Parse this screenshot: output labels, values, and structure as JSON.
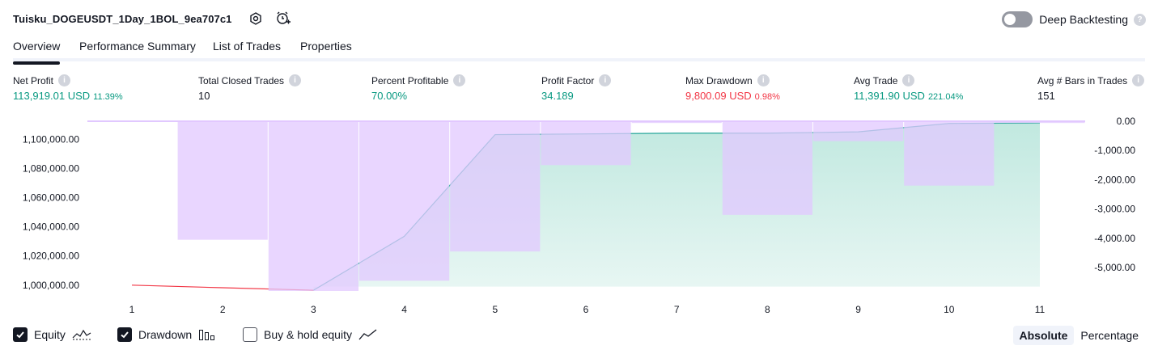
{
  "header": {
    "title": "Tuisku_DOGEUSDT_1Day_1BOL_9ea707c1",
    "deep_backtesting_label": "Deep Backtesting",
    "deep_backtesting_on": false
  },
  "tabs": [
    {
      "label": "Overview",
      "active": true
    },
    {
      "label": "Performance Summary",
      "active": false
    },
    {
      "label": "List of Trades",
      "active": false
    },
    {
      "label": "Properties",
      "active": false
    }
  ],
  "metrics": [
    {
      "label": "Net Profit",
      "value": "113,919.01 USD",
      "pct": "11.39%",
      "color": "green"
    },
    {
      "label": "Total Closed Trades",
      "value": "10",
      "pct": "",
      "color": "dark"
    },
    {
      "label": "Percent Profitable",
      "value": "70.00%",
      "pct": "",
      "color": "green"
    },
    {
      "label": "Profit Factor",
      "value": "34.189",
      "pct": "",
      "color": "green"
    },
    {
      "label": "Max Drawdown",
      "value": "9,800.09 USD",
      "pct": "0.98%",
      "color": "red"
    },
    {
      "label": "Avg Trade",
      "value": "11,391.90 USD",
      "pct": "221.04%",
      "color": "green"
    },
    {
      "label": "Avg # Bars in Trades",
      "value": "151",
      "pct": "",
      "color": "dark"
    }
  ],
  "chart_data": {
    "type": "area",
    "x": [
      1,
      2,
      3,
      4,
      5,
      6,
      7,
      8,
      9,
      10,
      11
    ],
    "left_axis": {
      "ticks": [
        "1,100,000.00",
        "1,080,000.00",
        "1,060,000.00",
        "1,040,000.00",
        "1,020,000.00",
        "1,000,000.00"
      ],
      "tick_values": [
        1100000,
        1080000,
        1060000,
        1040000,
        1020000,
        1000000
      ],
      "range": [
        996000,
        1112500
      ]
    },
    "right_axis": {
      "ticks": [
        "0.00",
        "-1,000.00",
        "-2,000.00",
        "-3,000.00",
        "-4,000.00",
        "-5,000.00"
      ],
      "tick_values": [
        0,
        -1000,
        -2000,
        -3000,
        -4000,
        -5000
      ],
      "range": [
        -5800,
        0
      ]
    },
    "series": [
      {
        "name": "Equity",
        "values": [
          1000000,
          998200,
          996500,
          1033500,
          1103300,
          1103800,
          1104300,
          1104300,
          1105200,
          1111000,
          1111300
        ]
      },
      {
        "name": "Drawdown",
        "values": [
          0,
          -4050,
          -5800,
          -5450,
          -4450,
          -1500,
          -60,
          -3200,
          -680,
          -2200,
          -60
        ]
      }
    ],
    "colors": {
      "equity_line": "#26a69a",
      "equity_loss_line": "#f23645",
      "drawdown_fill": "#e1c8ff",
      "equity_fill": "#b2e3d8"
    }
  },
  "footer": {
    "checks": [
      {
        "label": "Equity",
        "checked": true,
        "icon": "equity-line-icon"
      },
      {
        "label": "Drawdown",
        "checked": true,
        "icon": "drawdown-bars-icon"
      },
      {
        "label": "Buy & hold equity",
        "checked": false,
        "icon": "buy-hold-line-icon"
      }
    ],
    "modes": [
      {
        "label": "Absolute",
        "active": true
      },
      {
        "label": "Percentage",
        "active": false
      }
    ]
  }
}
